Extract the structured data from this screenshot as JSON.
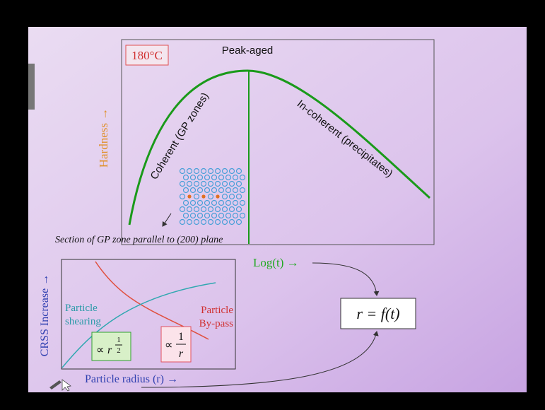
{
  "slide": {
    "top_plot": {
      "temperature": "180°C",
      "peak_label": "Peak-aged",
      "y_label": "Hardness →",
      "x_label": "Log(t) →",
      "left_curve_label": "Coherent (GP zones)",
      "right_curve_label": "In-coherent (precipitates)",
      "inset_caption": "Section of GP zone parallel to (200) plane"
    },
    "bottom_plot": {
      "y_label": "CRSS Increase →",
      "x_label": "Particle radius (r) →",
      "shearing_label": [
        "Particle",
        "shearing"
      ],
      "bypass_label": [
        "Particle",
        "By-pass"
      ],
      "shearing_scaling": {
        "symbol": "∝",
        "base": "r",
        "numerator": "1",
        "denominator": "2"
      },
      "bypass_scaling": {
        "symbol": "∝",
        "numerator": "1",
        "denominator": "r"
      }
    },
    "relation": "r = f(t)"
  }
}
